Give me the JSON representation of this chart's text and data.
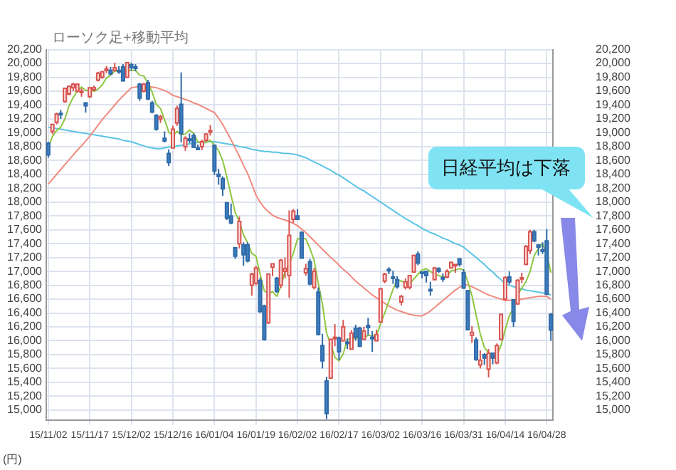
{
  "chart_data": {
    "type": "candlestick",
    "title": "ローソク足+移動平均",
    "ylabel": "(円)",
    "annotations": [
      "日経平均は下落"
    ],
    "grid": true,
    "categories": [
      "15/11/02",
      null,
      null,
      null,
      null,
      null,
      null,
      null,
      null,
      null,
      "15/11/17",
      null,
      null,
      null,
      null,
      null,
      null,
      null,
      null,
      null,
      "15/12/02",
      null,
      null,
      null,
      null,
      null,
      null,
      null,
      null,
      null,
      "15/12/16",
      null,
      null,
      null,
      null,
      null,
      null,
      null,
      null,
      null,
      "16/01/04",
      null,
      null,
      null,
      null,
      null,
      null,
      null,
      null,
      null,
      "16/01/19",
      null,
      null,
      null,
      null,
      null,
      null,
      null,
      null,
      null,
      "16/02/02",
      null,
      null,
      null,
      null,
      null,
      null,
      null,
      null,
      null,
      "16/02/17",
      null,
      null,
      null,
      null,
      null,
      null,
      null,
      null,
      null,
      "16/03/02",
      null,
      null,
      null,
      null,
      null,
      null,
      null,
      null,
      null,
      "16/03/16",
      null,
      null,
      null,
      null,
      null,
      null,
      null,
      null,
      null,
      "16/03/31",
      null,
      null,
      null,
      null,
      null,
      null,
      null,
      null,
      null,
      "16/04/14",
      null,
      null,
      null,
      null,
      null,
      null,
      null,
      null,
      null,
      "16/04/28",
      null
    ],
    "ohlc": [
      [
        18850,
        18870,
        18640,
        18680
      ],
      [
        19020,
        19130,
        18980,
        19120
      ],
      [
        19150,
        19290,
        19120,
        19270
      ],
      [
        19280,
        19330,
        19200,
        19270
      ],
      [
        19450,
        19650,
        19430,
        19640
      ],
      [
        19560,
        19680,
        19540,
        19670
      ],
      [
        19650,
        19720,
        19600,
        19700
      ],
      [
        19600,
        19710,
        19580,
        19700
      ],
      [
        19580,
        19640,
        19520,
        19600
      ],
      [
        19430,
        19440,
        19290,
        19390
      ],
      [
        19520,
        19660,
        19500,
        19650
      ],
      [
        19620,
        19680,
        19600,
        19650
      ],
      [
        19760,
        19880,
        19740,
        19860
      ],
      [
        19800,
        19890,
        19780,
        19880
      ],
      [
        19900,
        19960,
        19860,
        19920
      ],
      [
        19900,
        19950,
        19830,
        19850
      ],
      [
        19900,
        20010,
        19880,
        19940
      ],
      [
        19900,
        19960,
        19850,
        19880
      ],
      [
        19950,
        19990,
        19740,
        19750
      ],
      [
        19800,
        20020,
        19790,
        20010
      ],
      [
        19980,
        20010,
        19900,
        19940
      ],
      [
        19950,
        19990,
        19890,
        19940
      ],
      [
        19700,
        19720,
        19460,
        19500
      ],
      [
        19600,
        19720,
        19580,
        19700
      ],
      [
        19720,
        19760,
        19470,
        19490
      ],
      [
        19430,
        19460,
        19280,
        19300
      ],
      [
        19250,
        19270,
        19030,
        19050
      ],
      [
        19200,
        19260,
        19140,
        19230
      ],
      [
        18920,
        19020,
        18860,
        18880
      ],
      [
        18700,
        18760,
        18520,
        18570
      ],
      [
        18780,
        19100,
        18780,
        19050
      ],
      [
        19140,
        19390,
        19100,
        19350
      ],
      [
        19410,
        19870,
        18860,
        18990
      ],
      [
        18800,
        18950,
        18740,
        18920
      ],
      [
        18910,
        18990,
        18850,
        18890
      ],
      [
        18960,
        18990,
        18780,
        18790
      ],
      [
        18780,
        18830,
        18760,
        18770
      ],
      [
        18800,
        18900,
        18750,
        18870
      ],
      [
        18890,
        18990,
        18870,
        18980
      ],
      [
        19010,
        19110,
        18960,
        19030
      ],
      [
        18820,
        18830,
        18390,
        18450
      ],
      [
        18400,
        18480,
        18250,
        18370
      ],
      [
        18340,
        18370,
        18090,
        18190
      ],
      [
        17990,
        18000,
        17740,
        17770
      ],
      [
        17800,
        17980,
        17680,
        17700
      ],
      [
        17340,
        17350,
        17180,
        17220
      ],
      [
        17400,
        17790,
        17330,
        17720
      ],
      [
        17380,
        17420,
        17080,
        17240
      ],
      [
        17380,
        17420,
        17130,
        17150
      ],
      [
        16800,
        16980,
        16650,
        16960
      ],
      [
        16830,
        17080,
        16800,
        17050
      ],
      [
        16870,
        16910,
        16400,
        16420
      ],
      [
        16500,
        16520,
        16000,
        16020
      ],
      [
        16260,
        16960,
        16240,
        16960
      ],
      [
        17060,
        17110,
        16930,
        17110
      ],
      [
        16900,
        16920,
        16690,
        16710
      ],
      [
        16800,
        17180,
        16760,
        17160
      ],
      [
        17000,
        17200,
        16900,
        17040
      ],
      [
        16940,
        17880,
        16620,
        17520
      ],
      [
        17750,
        17900,
        17700,
        17870
      ],
      [
        17800,
        17900,
        17740,
        17750
      ],
      [
        17560,
        17580,
        17190,
        17190
      ],
      [
        16980,
        17110,
        16940,
        17040
      ],
      [
        17140,
        17180,
        16800,
        16820
      ],
      [
        16770,
        17050,
        16740,
        17000
      ],
      [
        16700,
        16770,
        16080,
        16090
      ],
      [
        15930,
        16100,
        15600,
        15710
      ],
      [
        15420,
        15480,
        14870,
        14950
      ],
      [
        15460,
        16020,
        15450,
        16020
      ],
      [
        16050,
        16240,
        15920,
        16050
      ],
      [
        16040,
        16060,
        15720,
        15840
      ],
      [
        16000,
        16300,
        15990,
        16200
      ],
      [
        15980,
        16030,
        15880,
        15970
      ],
      [
        15880,
        16150,
        15880,
        16110
      ],
      [
        16180,
        16230,
        16000,
        16050
      ],
      [
        16180,
        16200,
        15910,
        15920
      ],
      [
        16020,
        16200,
        16010,
        16140
      ],
      [
        16220,
        16330,
        16080,
        16190
      ],
      [
        16050,
        16140,
        15840,
        16030
      ],
      [
        16000,
        16160,
        15990,
        16090
      ],
      [
        16270,
        16760,
        16260,
        16750
      ],
      [
        16860,
        16980,
        16830,
        16960
      ],
      [
        17030,
        17060,
        16960,
        17010
      ],
      [
        16920,
        17010,
        16820,
        16910
      ],
      [
        16880,
        16930,
        16750,
        16780
      ],
      [
        16560,
        16660,
        16510,
        16640
      ],
      [
        16770,
        16900,
        16740,
        16850
      ],
      [
        16770,
        16950,
        16740,
        16940
      ],
      [
        16990,
        17240,
        16980,
        17230
      ],
      [
        17250,
        17290,
        17090,
        17120
      ],
      [
        16990,
        17000,
        16900,
        16970
      ],
      [
        17000,
        17010,
        16840,
        16940
      ],
      [
        16740,
        16850,
        16650,
        16720
      ],
      [
        16880,
        17060,
        16880,
        17050
      ],
      [
        17040,
        17060,
        16980,
        17000
      ],
      [
        16910,
        16970,
        16850,
        16890
      ],
      [
        16920,
        17030,
        16900,
        17000
      ],
      [
        17050,
        17140,
        17040,
        17130
      ],
      [
        17090,
        17100,
        16980,
        17100
      ],
      [
        17180,
        17190,
        17070,
        17100
      ],
      [
        16980,
        17030,
        16750,
        16760
      ],
      [
        16720,
        16730,
        16150,
        16160
      ],
      [
        16080,
        16210,
        15970,
        16120
      ],
      [
        16010,
        16050,
        15710,
        15730
      ],
      [
        15650,
        15860,
        15600,
        15720
      ],
      [
        15800,
        15820,
        15650,
        15750
      ],
      [
        15590,
        15880,
        15470,
        15820
      ],
      [
        15820,
        15830,
        15660,
        15750
      ],
      [
        15680,
        15960,
        15660,
        15930
      ],
      [
        16020,
        16390,
        16010,
        16380
      ],
      [
        16600,
        16930,
        16580,
        16910
      ],
      [
        16920,
        17000,
        16810,
        16850
      ],
      [
        16590,
        16590,
        16200,
        16280
      ],
      [
        16530,
        16890,
        16520,
        16870
      ],
      [
        16890,
        16980,
        16830,
        16910
      ],
      [
        17100,
        17380,
        17090,
        17360
      ],
      [
        17300,
        17600,
        17250,
        17570
      ],
      [
        17570,
        17600,
        17420,
        17440
      ],
      [
        17380,
        17390,
        17230,
        17350
      ],
      [
        17310,
        17420,
        17250,
        17290
      ],
      [
        17440,
        17610,
        16660,
        16670
      ],
      [
        16380,
        16400,
        16000,
        16150
      ]
    ],
    "series": [
      {
        "type": "line",
        "color": "#8dc63f",
        "values": [
          18780,
          18950,
          19030,
          19080,
          19200,
          19390,
          19510,
          19600,
          19660,
          19610,
          19610,
          19600,
          19630,
          19690,
          19790,
          19830,
          19890,
          19890,
          19870,
          19890,
          19900,
          19900,
          19830,
          19820,
          19710,
          19590,
          19410,
          19350,
          19190,
          19010,
          18960,
          19020,
          18970,
          18980,
          19040,
          18990,
          18870,
          18850,
          18860,
          18890,
          18820,
          18740,
          18600,
          18360,
          18100,
          17850,
          17720,
          17530,
          17410,
          17260,
          17220,
          16960,
          16720,
          16680,
          16710,
          16640,
          16790,
          17000,
          17110,
          17260,
          17470,
          17470,
          17470,
          17330,
          17160,
          16830,
          16530,
          16110,
          15950,
          15760,
          15710,
          15810,
          16020,
          16030,
          16030,
          16050,
          16040,
          16080,
          16070,
          16070,
          16240,
          16400,
          16570,
          16740,
          16880,
          16860,
          16840,
          16820,
          16890,
          16960,
          17020,
          17040,
          17000,
          16960,
          16940,
          16920,
          16930,
          17010,
          17020,
          17040,
          17020,
          16850,
          16650,
          16370,
          16100,
          15900,
          15830,
          15750,
          15790,
          15930,
          16160,
          16360,
          16470,
          16660,
          16760,
          16850,
          17000,
          17230,
          17330,
          17400,
          17260,
          16980
        ]
      },
      {
        "type": "line",
        "color": "#f08a7e",
        "values": [
          18260,
          18330,
          18400,
          18470,
          18540,
          18610,
          18680,
          18750,
          18810,
          18880,
          18950,
          19030,
          19110,
          19190,
          19260,
          19330,
          19400,
          19470,
          19530,
          19590,
          19650,
          19660,
          19670,
          19670,
          19670,
          19660,
          19650,
          19630,
          19610,
          19580,
          19540,
          19520,
          19500,
          19480,
          19460,
          19430,
          19410,
          19380,
          19350,
          19320,
          19290,
          19210,
          19120,
          19010,
          18900,
          18780,
          18660,
          18530,
          18410,
          18260,
          18100,
          18000,
          17920,
          17860,
          17810,
          17780,
          17760,
          17740,
          17720,
          17690,
          17660,
          17610,
          17560,
          17500,
          17440,
          17380,
          17320,
          17260,
          17200,
          17150,
          17090,
          17030,
          16980,
          16920,
          16860,
          16810,
          16760,
          16710,
          16660,
          16620,
          16580,
          16540,
          16500,
          16470,
          16440,
          16420,
          16400,
          16380,
          16370,
          16360,
          16360,
          16390,
          16430,
          16480,
          16530,
          16580,
          16630,
          16680,
          16730,
          16770,
          16810,
          16800,
          16780,
          16750,
          16720,
          16690,
          16660,
          16640,
          16620,
          16600,
          16580,
          16580,
          16590,
          16590,
          16600,
          16610,
          16620,
          16630,
          16640,
          16640,
          16640,
          16600
        ]
      },
      {
        "type": "line",
        "color": "#5bc4e5",
        "values": [
          19080,
          19070,
          19060,
          19050,
          19040,
          19030,
          19020,
          19010,
          19000,
          18990,
          18980,
          18970,
          18960,
          18950,
          18940,
          18930,
          18920,
          18910,
          18890,
          18880,
          18870,
          18850,
          18830,
          18810,
          18790,
          18780,
          18770,
          18770,
          18780,
          18790,
          18800,
          18810,
          18820,
          18830,
          18840,
          18850,
          18860,
          18860,
          18870,
          18870,
          18870,
          18860,
          18850,
          18840,
          18830,
          18820,
          18800,
          18790,
          18780,
          18760,
          18750,
          18740,
          18730,
          18730,
          18720,
          18720,
          18710,
          18700,
          18700,
          18690,
          18680,
          18660,
          18640,
          18610,
          18580,
          18550,
          18520,
          18490,
          18460,
          18420,
          18390,
          18350,
          18310,
          18270,
          18230,
          18190,
          18160,
          18120,
          18080,
          18040,
          18000,
          17960,
          17920,
          17880,
          17840,
          17800,
          17760,
          17730,
          17690,
          17660,
          17620,
          17590,
          17560,
          17540,
          17510,
          17480,
          17460,
          17430,
          17400,
          17380,
          17350,
          17300,
          17250,
          17200,
          17150,
          17100,
          17040,
          16990,
          16930,
          16880,
          16820,
          16800,
          16780,
          16760,
          16750,
          16730,
          16720,
          16710,
          16700,
          16690,
          16680,
          16660
        ]
      }
    ],
    "ylim": [
      14850,
      20200
    ],
    "yticks": [
      {
        "value": 15000,
        "label": "15,000"
      },
      {
        "value": 15200,
        "label": "15,200"
      },
      {
        "value": 15400,
        "label": "15,400"
      },
      {
        "value": 15600,
        "label": "15,600"
      },
      {
        "value": 15800,
        "label": "15,800"
      },
      {
        "value": 16000,
        "label": "16,000"
      },
      {
        "value": 16200,
        "label": "16,200"
      },
      {
        "value": 16400,
        "label": "16,400"
      },
      {
        "value": 16600,
        "label": "16,600"
      },
      {
        "value": 16800,
        "label": "16,800"
      },
      {
        "value": 17000,
        "label": "17,000"
      },
      {
        "value": 17200,
        "label": "17,200"
      },
      {
        "value": 17400,
        "label": "17,400"
      },
      {
        "value": 17600,
        "label": "17,600"
      },
      {
        "value": 17800,
        "label": "17,800"
      },
      {
        "value": 18000,
        "label": "18,000"
      },
      {
        "value": 18200,
        "label": "18,200"
      },
      {
        "value": 18400,
        "label": "18,400"
      },
      {
        "value": 18600,
        "label": "18,600"
      },
      {
        "value": 18800,
        "label": "18,800"
      },
      {
        "value": 19000,
        "label": "19,000"
      },
      {
        "value": 19200,
        "label": "19,200"
      },
      {
        "value": 19400,
        "label": "19,400"
      },
      {
        "value": 19600,
        "label": "19,600"
      },
      {
        "value": 19800,
        "label": "19,800"
      },
      {
        "value": 20000,
        "label": "20,000"
      },
      {
        "value": 20200,
        "label": "20,200"
      }
    ],
    "y2lim": [
      14850,
      20200
    ],
    "y2ticks": [
      {
        "value": 15000,
        "label": "15,000"
      },
      {
        "value": 15200,
        "label": "15,200"
      },
      {
        "value": 15400,
        "label": "15,400"
      },
      {
        "value": 15600,
        "label": "15,600"
      },
      {
        "value": 15800,
        "label": "15,800"
      },
      {
        "value": 16000,
        "label": "16,000"
      },
      {
        "value": 16200,
        "label": "16,200"
      },
      {
        "value": 16400,
        "label": "16,400"
      },
      {
        "value": 16600,
        "label": "16,600"
      },
      {
        "value": 16800,
        "label": "16,800"
      },
      {
        "value": 17000,
        "label": "17,000"
      },
      {
        "value": 17200,
        "label": "17,200"
      },
      {
        "value": 17400,
        "label": "17,400"
      },
      {
        "value": 17600,
        "label": "17,600"
      },
      {
        "value": 17800,
        "label": "17,800"
      },
      {
        "value": 18000,
        "label": "18,000"
      },
      {
        "value": 18200,
        "label": "18,200"
      },
      {
        "value": 18400,
        "label": "18,400"
      },
      {
        "value": 18600,
        "label": "18,600"
      },
      {
        "value": 18800,
        "label": "18,800"
      },
      {
        "value": 19000,
        "label": "19,000"
      },
      {
        "value": 19200,
        "label": "19,200"
      },
      {
        "value": 19400,
        "label": "19,400"
      },
      {
        "value": 19600,
        "label": "19,600"
      },
      {
        "value": 19800,
        "label": "19,800"
      },
      {
        "value": 20000,
        "label": "20,000"
      },
      {
        "value": 20200,
        "label": "20,200"
      }
    ]
  }
}
